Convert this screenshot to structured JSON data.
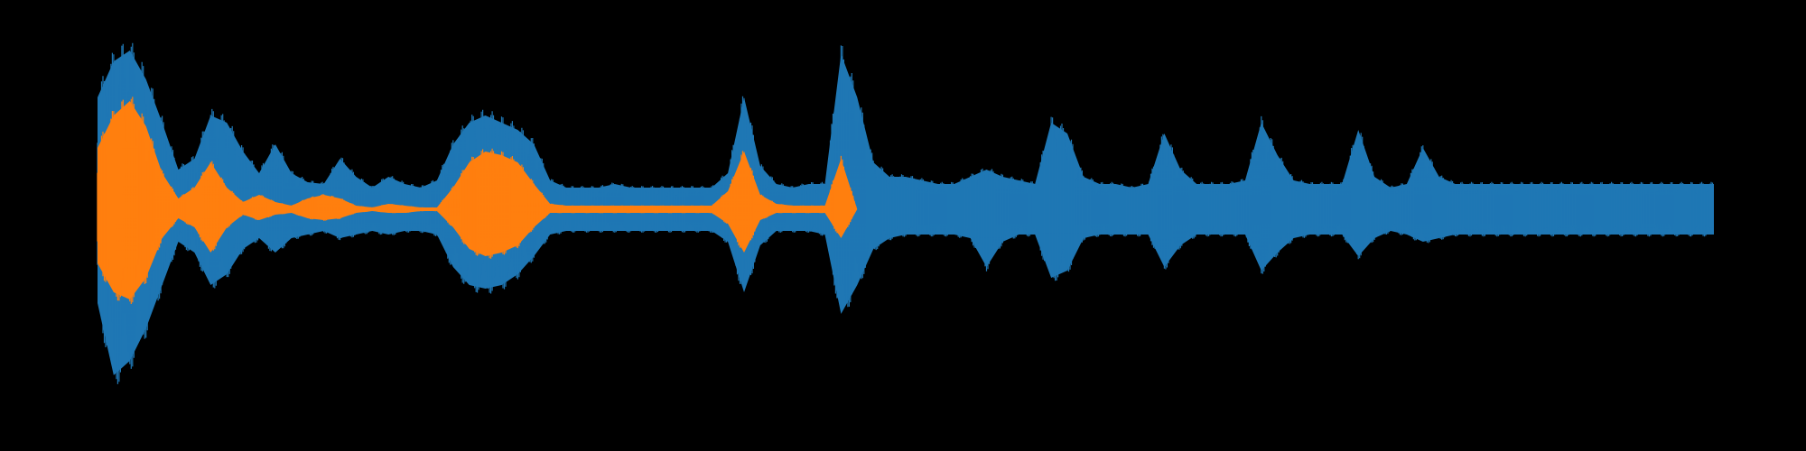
{
  "chart_data": {
    "type": "area",
    "title": "",
    "xlabel": "",
    "ylabel": "",
    "axes_visible": false,
    "grid": false,
    "legend": "none",
    "background": "#000000",
    "xlim": [
      0,
      100
    ],
    "ylim": [
      -1.0,
      1.0
    ],
    "series": [
      {
        "color": "#1f77b4",
        "x": [
          0,
          1,
          2,
          3,
          4,
          5,
          6,
          7,
          8,
          9,
          10,
          11,
          12,
          13,
          14,
          15,
          16,
          17,
          18,
          19,
          20,
          21,
          22,
          23,
          24,
          25,
          26,
          27,
          28,
          29,
          30,
          31,
          32,
          33,
          34,
          35,
          36,
          37,
          38,
          39,
          40,
          41,
          42,
          43,
          44,
          45,
          46,
          47,
          48,
          49,
          50,
          51,
          52,
          53,
          54,
          55,
          56,
          57,
          58,
          59,
          60,
          61,
          62,
          63,
          64,
          65,
          66,
          67,
          68,
          69,
          70,
          71,
          72,
          73,
          74,
          75,
          76,
          77,
          78,
          79,
          80,
          81,
          82,
          83,
          84,
          85,
          86,
          87,
          88,
          89,
          90,
          91,
          92,
          93,
          94,
          95,
          96,
          97,
          98,
          99,
          100
        ],
        "upper": [
          0.62,
          0.82,
          0.88,
          0.72,
          0.48,
          0.22,
          0.28,
          0.52,
          0.48,
          0.32,
          0.2,
          0.36,
          0.2,
          0.15,
          0.14,
          0.28,
          0.18,
          0.12,
          0.18,
          0.14,
          0.12,
          0.16,
          0.36,
          0.48,
          0.52,
          0.48,
          0.44,
          0.36,
          0.16,
          0.12,
          0.12,
          0.12,
          0.14,
          0.12,
          0.12,
          0.12,
          0.12,
          0.12,
          0.12,
          0.2,
          0.62,
          0.24,
          0.14,
          0.12,
          0.14,
          0.14,
          0.86,
          0.62,
          0.26,
          0.18,
          0.18,
          0.16,
          0.14,
          0.14,
          0.18,
          0.22,
          0.18,
          0.16,
          0.14,
          0.48,
          0.42,
          0.18,
          0.14,
          0.14,
          0.12,
          0.14,
          0.42,
          0.22,
          0.14,
          0.14,
          0.14,
          0.16,
          0.48,
          0.3,
          0.16,
          0.14,
          0.14,
          0.14,
          0.44,
          0.18,
          0.12,
          0.14,
          0.34,
          0.18,
          0.14,
          0.14,
          0.14,
          0.14,
          0.14,
          0.14,
          0.14,
          0.14,
          0.14,
          0.14,
          0.14,
          0.14,
          0.14,
          0.14,
          0.14,
          0.14,
          0.14
        ],
        "lower": [
          -0.52,
          -0.92,
          -0.84,
          -0.66,
          -0.42,
          -0.18,
          -0.24,
          -0.42,
          -0.36,
          -0.22,
          -0.16,
          -0.24,
          -0.16,
          -0.14,
          -0.12,
          -0.16,
          -0.14,
          -0.12,
          -0.14,
          -0.12,
          -0.12,
          -0.14,
          -0.32,
          -0.42,
          -0.44,
          -0.42,
          -0.36,
          -0.26,
          -0.14,
          -0.12,
          -0.12,
          -0.12,
          -0.12,
          -0.12,
          -0.12,
          -0.12,
          -0.12,
          -0.12,
          -0.12,
          -0.18,
          -0.46,
          -0.2,
          -0.12,
          -0.12,
          -0.12,
          -0.14,
          -0.58,
          -0.42,
          -0.22,
          -0.16,
          -0.14,
          -0.14,
          -0.14,
          -0.14,
          -0.16,
          -0.32,
          -0.18,
          -0.14,
          -0.14,
          -0.38,
          -0.34,
          -0.16,
          -0.14,
          -0.14,
          -0.14,
          -0.14,
          -0.32,
          -0.2,
          -0.14,
          -0.14,
          -0.14,
          -0.14,
          -0.34,
          -0.24,
          -0.16,
          -0.14,
          -0.14,
          -0.14,
          -0.26,
          -0.16,
          -0.12,
          -0.14,
          -0.18,
          -0.16,
          -0.14,
          -0.14,
          -0.14,
          -0.14,
          -0.14,
          -0.14,
          -0.14,
          -0.14,
          -0.14,
          -0.14,
          -0.14,
          -0.14,
          -0.14,
          -0.14,
          -0.14,
          -0.14,
          -0.14
        ]
      },
      {
        "color": "#ff7f0e",
        "x": [
          0,
          1,
          2,
          3,
          4,
          5,
          6,
          7,
          8,
          9,
          10,
          11,
          12,
          13,
          14,
          15,
          16,
          17,
          18,
          19,
          20,
          21,
          22,
          23,
          24,
          25,
          26,
          27,
          28,
          29,
          30,
          31,
          32,
          33,
          34,
          35,
          36,
          37,
          38,
          39,
          40,
          41,
          42,
          43,
          44,
          45,
          46,
          47,
          48,
          49,
          50
        ],
        "upper": [
          0.34,
          0.52,
          0.6,
          0.46,
          0.2,
          0.06,
          0.12,
          0.26,
          0.12,
          0.04,
          0.08,
          0.04,
          0.02,
          0.06,
          0.08,
          0.06,
          0.02,
          0.01,
          0.03,
          0.02,
          0.01,
          0.01,
          0.12,
          0.26,
          0.32,
          0.3,
          0.26,
          0.14,
          0.03,
          0.02,
          0.02,
          0.02,
          0.02,
          0.02,
          0.02,
          0.02,
          0.02,
          0.02,
          0.02,
          0.1,
          0.32,
          0.08,
          0.03,
          0.02,
          0.02,
          0.02,
          0.28,
          0.0,
          0.0,
          0.0,
          0.0
        ],
        "lower": [
          -0.3,
          -0.46,
          -0.5,
          -0.38,
          -0.16,
          -0.05,
          -0.1,
          -0.24,
          -0.1,
          -0.03,
          -0.06,
          -0.03,
          -0.02,
          -0.05,
          -0.06,
          -0.05,
          -0.02,
          -0.01,
          -0.02,
          -0.02,
          -0.01,
          -0.01,
          -0.1,
          -0.22,
          -0.26,
          -0.24,
          -0.2,
          -0.1,
          -0.02,
          -0.02,
          -0.02,
          -0.02,
          -0.02,
          -0.02,
          -0.02,
          -0.02,
          -0.02,
          -0.02,
          -0.02,
          -0.08,
          -0.24,
          -0.06,
          -0.02,
          -0.02,
          -0.02,
          -0.02,
          -0.16,
          0.0,
          0.0,
          0.0,
          0.0
        ]
      }
    ]
  }
}
